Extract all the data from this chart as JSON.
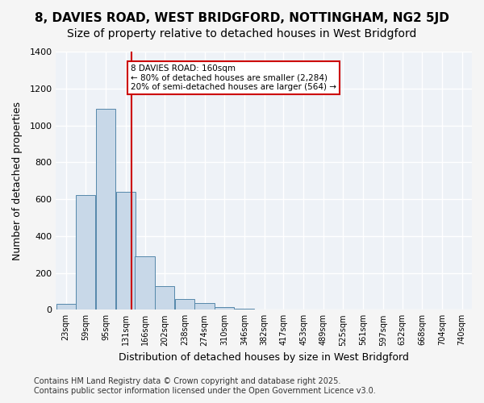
{
  "title_line1": "8, DAVIES ROAD, WEST BRIDGFORD, NOTTINGHAM, NG2 5JD",
  "title_line2": "Size of property relative to detached houses in West Bridgford",
  "xlabel": "Distribution of detached houses by size in West Bridgford",
  "ylabel": "Number of detached properties",
  "bar_color": "#c8d8e8",
  "bar_edge_color": "#5588aa",
  "background_color": "#eef2f7",
  "grid_color": "#ffffff",
  "annotation_box_color": "#cc0000",
  "annotation_text": "8 DAVIES ROAD: 160sqm\n← 80% of detached houses are smaller (2,284)\n20% of semi-detached houses are larger (564) →",
  "red_line_x": 160,
  "property_size": 160,
  "categories": [
    "23sqm",
    "59sqm",
    "95sqm",
    "131sqm",
    "166sqm",
    "202sqm",
    "238sqm",
    "274sqm",
    "310sqm",
    "346sqm",
    "382sqm",
    "417sqm",
    "453sqm",
    "489sqm",
    "525sqm",
    "561sqm",
    "597sqm",
    "632sqm",
    "668sqm",
    "704sqm",
    "740sqm"
  ],
  "bin_edges": [
    23,
    59,
    95,
    131,
    166,
    202,
    238,
    274,
    310,
    346,
    382,
    417,
    453,
    489,
    525,
    561,
    597,
    632,
    668,
    704,
    740
  ],
  "values": [
    30,
    620,
    1090,
    640,
    290,
    130,
    60,
    35,
    15,
    5,
    0,
    0,
    0,
    0,
    0,
    0,
    0,
    0,
    0,
    0,
    0
  ],
  "ylim": [
    0,
    1400
  ],
  "yticks": [
    0,
    200,
    400,
    600,
    800,
    1000,
    1200,
    1400
  ],
  "footer_line1": "Contains HM Land Registry data © Crown copyright and database right 2025.",
  "footer_line2": "Contains public sector information licensed under the Open Government Licence v3.0.",
  "footnote_fontsize": 7,
  "title_fontsize1": 11,
  "title_fontsize2": 10
}
